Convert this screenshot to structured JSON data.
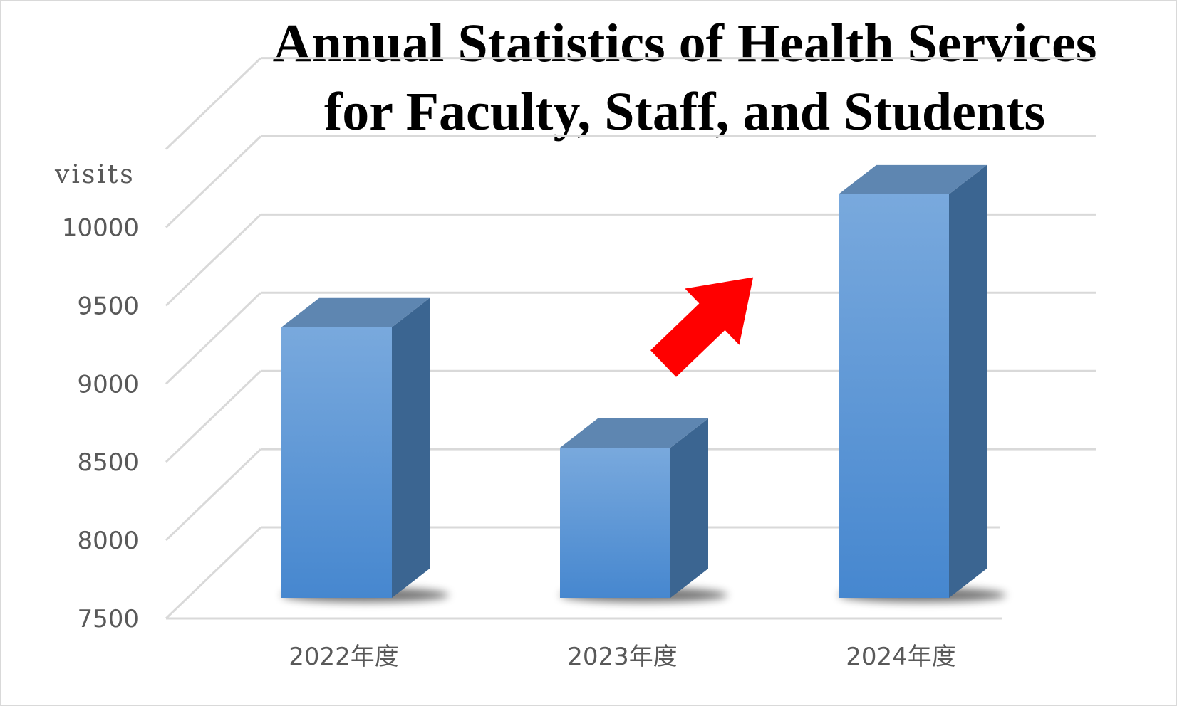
{
  "chart_data": {
    "type": "bar",
    "title_lines": [
      "Annual Statistics of Health Services",
      "for Faculty, Staff, and Students"
    ],
    "ylabel": "visits",
    "xlabel": "",
    "categories": [
      "2022年度",
      "2023年度",
      "2024年度"
    ],
    "values": [
      9230,
      8460,
      10080
    ],
    "ylim": [
      7500,
      10000
    ],
    "yticks": [
      7500,
      8000,
      8500,
      9000,
      9500,
      10000
    ],
    "style": "3d-column",
    "grid": true,
    "annotation": "upward-arrow",
    "colors": {
      "bar_front_top": "#79a9dd",
      "bar_front_bottom": "#4687cf",
      "bar_side": "#3b6591",
      "bar_top": "#5e86b1",
      "arrow": "#ff0000",
      "grid": "#d9d9d9",
      "label": "#595959"
    }
  }
}
